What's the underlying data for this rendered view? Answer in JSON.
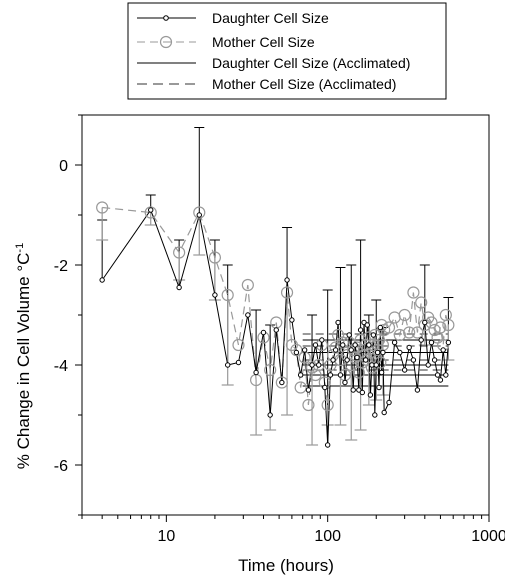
{
  "chart_data": {
    "type": "line",
    "title": "",
    "xlabel": "Time (hours)",
    "ylabel": "% Change in Cell Volume",
    "ylabel_unit": "°C",
    "ylabel_exp": "-1",
    "x_scale": "log",
    "xlim": [
      3,
      1000
    ],
    "ylim": [
      -7,
      1
    ],
    "x_ticks": [
      10,
      100,
      1000
    ],
    "x_tick_labels": [
      "10",
      "100",
      "1000"
    ],
    "y_ticks": [
      0,
      -2,
      -4,
      -6
    ],
    "y_tick_labels": [
      "0",
      "-2",
      "-4",
      "-6"
    ],
    "grid": false,
    "legend_position": "top",
    "legend": [
      {
        "label": "Daughter Cell Size",
        "style": "solid-dot",
        "color": "#000000"
      },
      {
        "label": "Mother Cell Size",
        "style": "dashed-circle",
        "color": "#999999"
      },
      {
        "label": "Daughter Cell Size (Acclimated)",
        "style": "solid",
        "color": "#000000"
      },
      {
        "label": "Mother Cell Size (Acclimated)",
        "style": "dashed",
        "color": "#333333"
      }
    ],
    "series": [
      {
        "name": "Daughter Cell Size",
        "color": "#000000",
        "x": [
          4,
          8,
          12,
          16,
          20,
          24,
          28,
          32,
          36,
          40,
          44,
          48,
          52,
          56,
          60,
          64,
          68,
          72,
          76,
          80,
          84,
          88,
          92,
          96,
          100,
          104,
          108,
          112,
          116,
          120,
          124,
          128,
          132,
          136,
          140,
          144,
          148,
          152,
          156,
          160,
          164,
          168,
          172,
          176,
          180,
          184,
          188,
          192,
          196,
          200,
          204,
          208,
          212,
          216,
          220,
          224,
          240,
          260,
          280,
          300,
          320,
          340,
          360,
          380,
          400,
          420,
          440,
          460,
          480,
          500,
          520,
          540,
          560
        ],
        "y": [
          -2.3,
          -0.9,
          -2.45,
          -1.0,
          -2.6,
          -4.0,
          -3.95,
          -3.0,
          -4.15,
          -3.35,
          -5.0,
          -3.3,
          -4.35,
          -2.3,
          -3.1,
          -3.75,
          -4.2,
          -3.7,
          -4.5,
          -4.0,
          -3.6,
          -4.0,
          -3.5,
          -4.45,
          -5.6,
          -4.2,
          -3.9,
          -3.7,
          -3.15,
          -4.2,
          -3.6,
          -4.35,
          -3.9,
          -3.4,
          -3.7,
          -4.5,
          -3.6,
          -3.85,
          -4.5,
          -3.3,
          -4.55,
          -3.15,
          -3.9,
          -3.2,
          -3.6,
          -4.6,
          -4.0,
          -3.4,
          -5.0,
          -4.0,
          -3.75,
          -4.45,
          -3.25,
          -4.15,
          -3.75,
          -4.95,
          -4.75,
          -3.55,
          -3.75,
          -4.1,
          -3.65,
          -3.9,
          -4.5,
          -3.5,
          -3.15,
          -4.0,
          -3.55,
          -3.9,
          -4.2,
          -4.3,
          -3.7,
          -4.2,
          -3.55
        ]
      },
      {
        "name": "Mother Cell Size",
        "color": "#999999",
        "x": [
          4,
          8,
          12,
          16,
          20,
          24,
          28,
          32,
          36,
          40,
          44,
          48,
          52,
          56,
          60,
          64,
          68,
          72,
          76,
          80,
          84,
          88,
          92,
          96,
          100,
          104,
          108,
          112,
          116,
          120,
          124,
          128,
          132,
          136,
          140,
          144,
          148,
          152,
          156,
          160,
          164,
          168,
          172,
          176,
          180,
          184,
          188,
          192,
          196,
          200,
          204,
          208,
          212,
          216,
          220,
          224,
          240,
          260,
          280,
          300,
          320,
          340,
          360,
          380,
          400,
          420,
          440,
          460,
          480,
          500,
          520,
          540,
          560
        ],
        "y": [
          -0.85,
          -0.95,
          -1.75,
          -0.95,
          -1.85,
          -2.6,
          -3.6,
          -2.4,
          -4.3,
          -3.45,
          -4.1,
          -3.15,
          -4.35,
          -2.55,
          -3.6,
          -3.7,
          -4.45,
          -3.85,
          -4.8,
          -4.05,
          -4.2,
          -4.0,
          -3.6,
          -4.35,
          -4.8,
          -4.0,
          -3.8,
          -3.65,
          -3.4,
          -3.9,
          -3.55,
          -4.2,
          -3.8,
          -3.55,
          -4.0,
          -3.7,
          -3.85,
          -3.65,
          -4.15,
          -3.5,
          -3.95,
          -3.8,
          -3.6,
          -3.9,
          -3.45,
          -3.75,
          -4.05,
          -3.6,
          -3.4,
          -3.85,
          -3.7,
          -3.5,
          -3.95,
          -3.2,
          -3.6,
          -3.3,
          -3.25,
          -3.05,
          -3.4,
          -3.0,
          -3.35,
          -2.55,
          -3.35,
          -2.75,
          -3.2,
          -3.05,
          -3.15,
          -3.3,
          -3.45,
          -3.25,
          -3.6,
          -3.0,
          -3.2
        ]
      },
      {
        "name": "Daughter Cell Size (Acclimated)",
        "style": "solid",
        "x_range": [
          70,
          560
        ],
        "levels": [
          -3.5,
          -3.75,
          -4.0,
          -4.2,
          -4.42
        ]
      },
      {
        "name": "Mother Cell Size (Acclimated)",
        "style": "dashed",
        "x_range": [
          70,
          560
        ],
        "levels": [
          -3.38,
          -3.62,
          -3.9,
          -4.1
        ]
      }
    ],
    "error_bars": [
      {
        "series": "Daughter Cell Size",
        "x": [
          4,
          8,
          12,
          16,
          20,
          24,
          36,
          44,
          56,
          80,
          100,
          120,
          140,
          160,
          180,
          200,
          220,
          400,
          560
        ],
        "upper": [
          -1.1,
          -0.6,
          -1.5,
          0.75,
          -1.5,
          -2.0,
          -2.9,
          -3.2,
          -1.25,
          -3.0,
          -2.5,
          -2.05,
          -2.0,
          -1.5,
          -3.0,
          -2.7,
          -3.25,
          -2.0,
          -2.65
        ]
      },
      {
        "series": "Mother Cell Size",
        "x": [
          4,
          8,
          12,
          16,
          20,
          24,
          36,
          44,
          56,
          80,
          100,
          120,
          140,
          160,
          180,
          200,
          220,
          400,
          560
        ],
        "lower": [
          -1.5,
          -1.2,
          -2.3,
          -1.8,
          -2.7,
          -4.4,
          -5.4,
          -5.3,
          -5.0,
          -5.6,
          -5.2,
          -5.2,
          -5.5,
          -5.3,
          -4.8,
          -4.7,
          -4.6,
          -3.6,
          -3.9
        ]
      }
    ]
  }
}
